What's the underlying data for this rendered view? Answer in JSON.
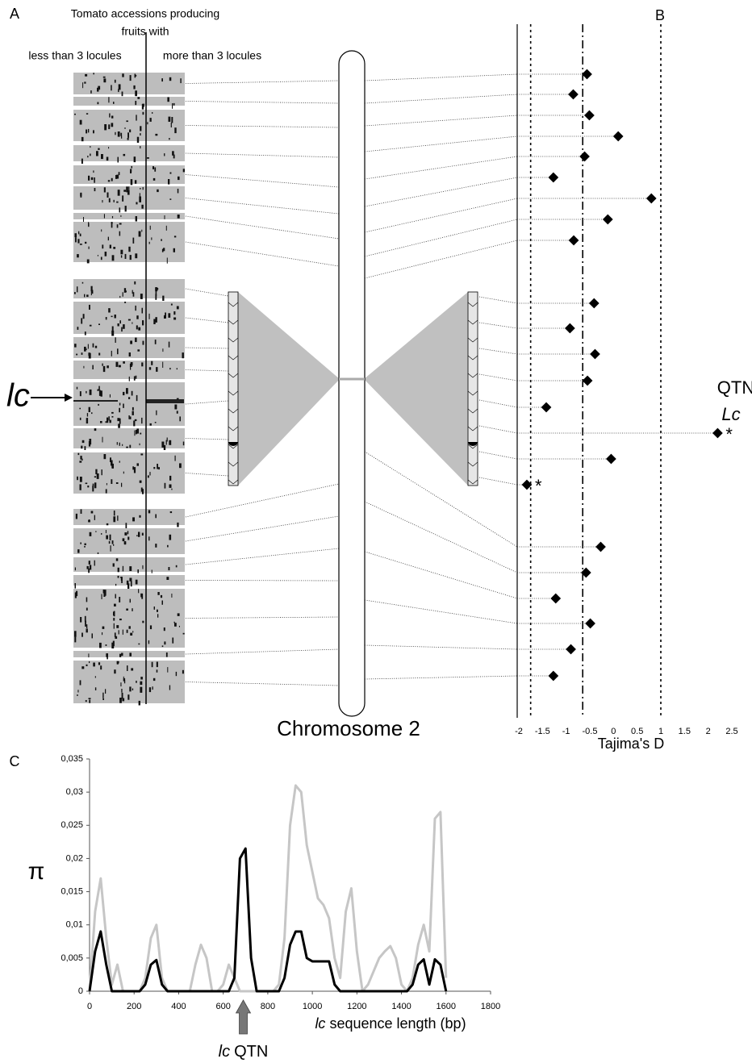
{
  "panel_labels": [
    "A",
    "B",
    "C"
  ],
  "panel_a": {
    "title": [
      "Tomato accessions producing",
      "fruits with"
    ],
    "groups": [
      "less than 3 locules",
      "more than 3 locules"
    ],
    "marker": "lc",
    "chromosome_marker": "lc",
    "chromosome": "Chromosome 2"
  },
  "chart_data": [
    {
      "type": "scatter",
      "x_label": "Tajima's D",
      "values": [
        -0.56,
        -0.85,
        -0.51,
        0.1,
        -0.61,
        -1.27,
        0.8,
        -0.12,
        -0.84,
        -0.41,
        -0.92,
        -0.39,
        -0.55,
        -1.42,
        2.2,
        -0.05,
        -1.83,
        -0.27,
        -0.58,
        -1.22,
        -0.49,
        -0.9,
        -1.27
      ],
      "color": "#000000",
      "xlim": [
        -2,
        2.5
      ],
      "xticks": [
        -2,
        -1.5,
        -1,
        -0.5,
        0,
        0.5,
        1,
        1.5,
        2,
        2.5
      ],
      "reference_lines": [
        {
          "value": -1.75,
          "style": "dotted"
        },
        {
          "value": -0.65,
          "style": "dash-dot"
        },
        {
          "value": 1,
          "style": "dotted"
        }
      ],
      "annotation": {
        "text": "QTN",
        "italic": "Lc"
      },
      "significance": {
        "symbol": "*",
        "points": [
          14,
          16
        ]
      }
    },
    {
      "type": "line",
      "x": [
        0,
        25,
        50,
        75,
        100,
        125,
        150,
        175,
        200,
        225,
        250,
        275,
        300,
        325,
        350,
        375,
        400,
        425,
        450,
        475,
        500,
        525,
        550,
        575,
        600,
        625,
        650,
        675,
        700,
        725,
        750,
        775,
        800,
        825,
        850,
        875,
        900,
        925,
        950,
        975,
        1000,
        1025,
        1050,
        1075,
        1100,
        1125,
        1150,
        1175,
        1200,
        1225,
        1250,
        1275,
        1300,
        1325,
        1350,
        1375,
        1400,
        1425,
        1450,
        1475,
        1500,
        1525,
        1550,
        1575,
        1600
      ],
      "series": [
        {
          "color": "#c6c6c6",
          "values": [
            0,
            0.012,
            0.017,
            0.008,
            0.001,
            0.004,
            0,
            0,
            0,
            0,
            0.002,
            0.008,
            0.01,
            0.002,
            0,
            0,
            0,
            0,
            0,
            0.004,
            0.007,
            0.005,
            0,
            0,
            0.001,
            0.004,
            0.002,
            0,
            0,
            0,
            0,
            0,
            0,
            0,
            0.001,
            0.008,
            0.025,
            0.031,
            0.03,
            0.022,
            0.018,
            0.014,
            0.013,
            0.011,
            0.005,
            0.002,
            0.012,
            0.0155,
            0.006,
            0,
            0.001,
            0.003,
            0.005,
            0.006,
            0.0068,
            0.005,
            0.001,
            0,
            0.002,
            0.007,
            0.01,
            0.006,
            0.026,
            0.027,
            0.002
          ]
        },
        {
          "color": "#000000",
          "values": [
            0,
            0.006,
            0.009,
            0.004,
            0,
            0,
            0,
            0,
            0,
            0,
            0.001,
            0.004,
            0.0047,
            0.001,
            0,
            0,
            0,
            0,
            0,
            0,
            0,
            0,
            0,
            0,
            0,
            0,
            0.002,
            0.02,
            0.0215,
            0.005,
            0,
            0,
            0,
            0,
            0,
            0.002,
            0.007,
            0.009,
            0.009,
            0.005,
            0.0045,
            0.0045,
            0.0045,
            0.0045,
            0.001,
            0,
            0,
            0,
            0,
            0,
            0,
            0,
            0,
            0,
            0,
            0,
            0,
            0,
            0.001,
            0.004,
            0.0048,
            0.001,
            0.0048,
            0.004,
            0
          ]
        }
      ],
      "xlim": [
        0,
        1800
      ],
      "xticks": [
        0,
        200,
        400,
        600,
        800,
        1000,
        1200,
        1400,
        1600,
        1800
      ],
      "ylim": [
        0,
        0.035
      ],
      "yticks": [
        0,
        {
          "value": 0.005,
          "label": "0,005"
        },
        {
          "value": 0.01,
          "label": "0,01"
        },
        {
          "value": 0.015,
          "label": "0,015"
        },
        {
          "value": 0.02,
          "label": "0,02"
        },
        {
          "value": 0.025,
          "label": "0,025"
        },
        {
          "value": 0.03,
          "label": "0,03"
        },
        {
          "value": 0.035,
          "label": "0,035"
        }
      ],
      "y_label": "π",
      "x_label": {
        "italic": "lc",
        "text": "sequence length (bp)"
      },
      "annotation": {
        "x": 690,
        "italic": "lc",
        "text": "QTN"
      }
    }
  ]
}
